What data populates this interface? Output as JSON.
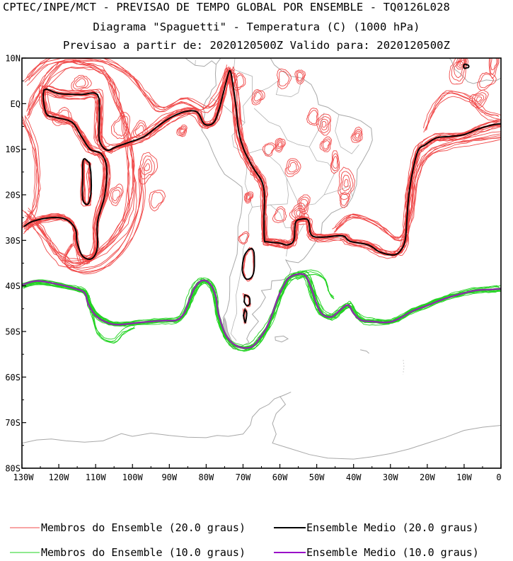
{
  "header": {
    "line1": "CPTEC/INPE/MCT - PREVISAO DE TEMPO GLOBAL POR ENSEMBLE - TQ0126L028",
    "line2": "Diagrama \"Spaguetti\" - Temperatura (C) (1000 hPa)",
    "line3": "Previsao a partir de: 2020120500Z  Valido para: 2020120500Z"
  },
  "map": {
    "lon_range": [
      -130,
      0
    ],
    "lat_range": [
      -80,
      10
    ],
    "y_ticks": [
      "10N",
      "EQ",
      "10S",
      "20S",
      "30S",
      "40S",
      "50S",
      "60S",
      "70S",
      "80S"
    ],
    "x_ticks": [
      "130W",
      "120W",
      "110W",
      "100W",
      "90W",
      "80W",
      "70W",
      "60W",
      "50W",
      "40W",
      "30W",
      "20W",
      "10W",
      "0"
    ]
  },
  "colors": {
    "member20": "#f04848",
    "mean20": "#000000",
    "member10": "#22d322",
    "mean10": "#9a10c8",
    "coast": "#a8a8a8"
  },
  "legend": [
    {
      "label": "Membros do Ensemble (20.0 graus)",
      "color": "#f04848"
    },
    {
      "label": "Ensemble Medio (20.0 graus)",
      "color": "#000000"
    },
    {
      "label": "Membros do Ensemble (10.0 graus)",
      "color": "#22d322"
    },
    {
      "label": "Ensemble Medio (10.0 graus)",
      "color": "#9a10c8"
    }
  ]
}
